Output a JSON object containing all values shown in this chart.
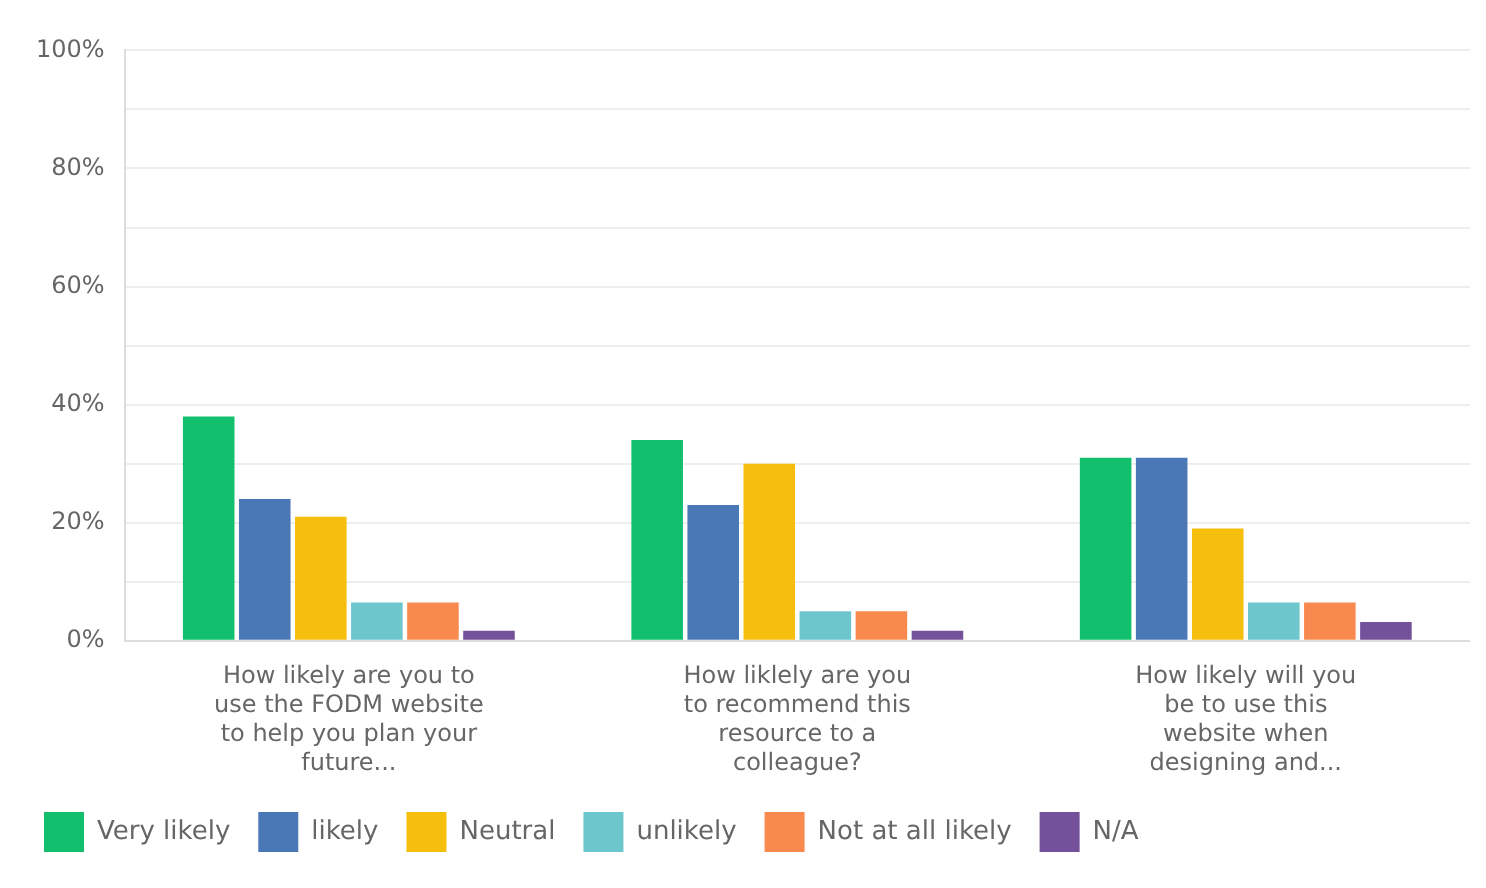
{
  "chart_data": {
    "type": "bar",
    "categories": [
      "How likely are you to use the FODM website to help you plan your future...",
      "How liklely are you to recommend this resource to a colleague?",
      "How likely will you be to use this website when designing and..."
    ],
    "series": [
      {
        "name": "Very likely",
        "color": "#12bf6d",
        "values": [
          38,
          34,
          31
        ]
      },
      {
        "name": "likely",
        "color": "#4a78b6",
        "values": [
          24,
          23,
          31
        ]
      },
      {
        "name": "Neutral",
        "color": "#f6bf0e",
        "values": [
          21,
          30,
          19
        ]
      },
      {
        "name": "unlikely",
        "color": "#6cc6cc",
        "values": [
          6.5,
          5,
          6.5
        ]
      },
      {
        "name": "Not at all likely",
        "color": "#f98a4f",
        "values": [
          6.5,
          5,
          6.5
        ]
      },
      {
        "name": "N/A",
        "color": "#74519a",
        "values": [
          1.7,
          1.7,
          3.2
        ]
      }
    ],
    "ylim": [
      0,
      100
    ],
    "yticks": [
      {
        "value": 0,
        "label": "0%"
      },
      {
        "value": 10,
        "label": null
      },
      {
        "value": 20,
        "label": "20%"
      },
      {
        "value": 30,
        "label": null
      },
      {
        "value": 40,
        "label": "40%"
      },
      {
        "value": 50,
        "label": null
      },
      {
        "value": 60,
        "label": "60%"
      },
      {
        "value": 70,
        "label": null
      },
      {
        "value": 80,
        "label": "80%"
      },
      {
        "value": 90,
        "label": null
      },
      {
        "value": 100,
        "label": "100%"
      }
    ],
    "grid": "y",
    "legend": "bottom left"
  }
}
